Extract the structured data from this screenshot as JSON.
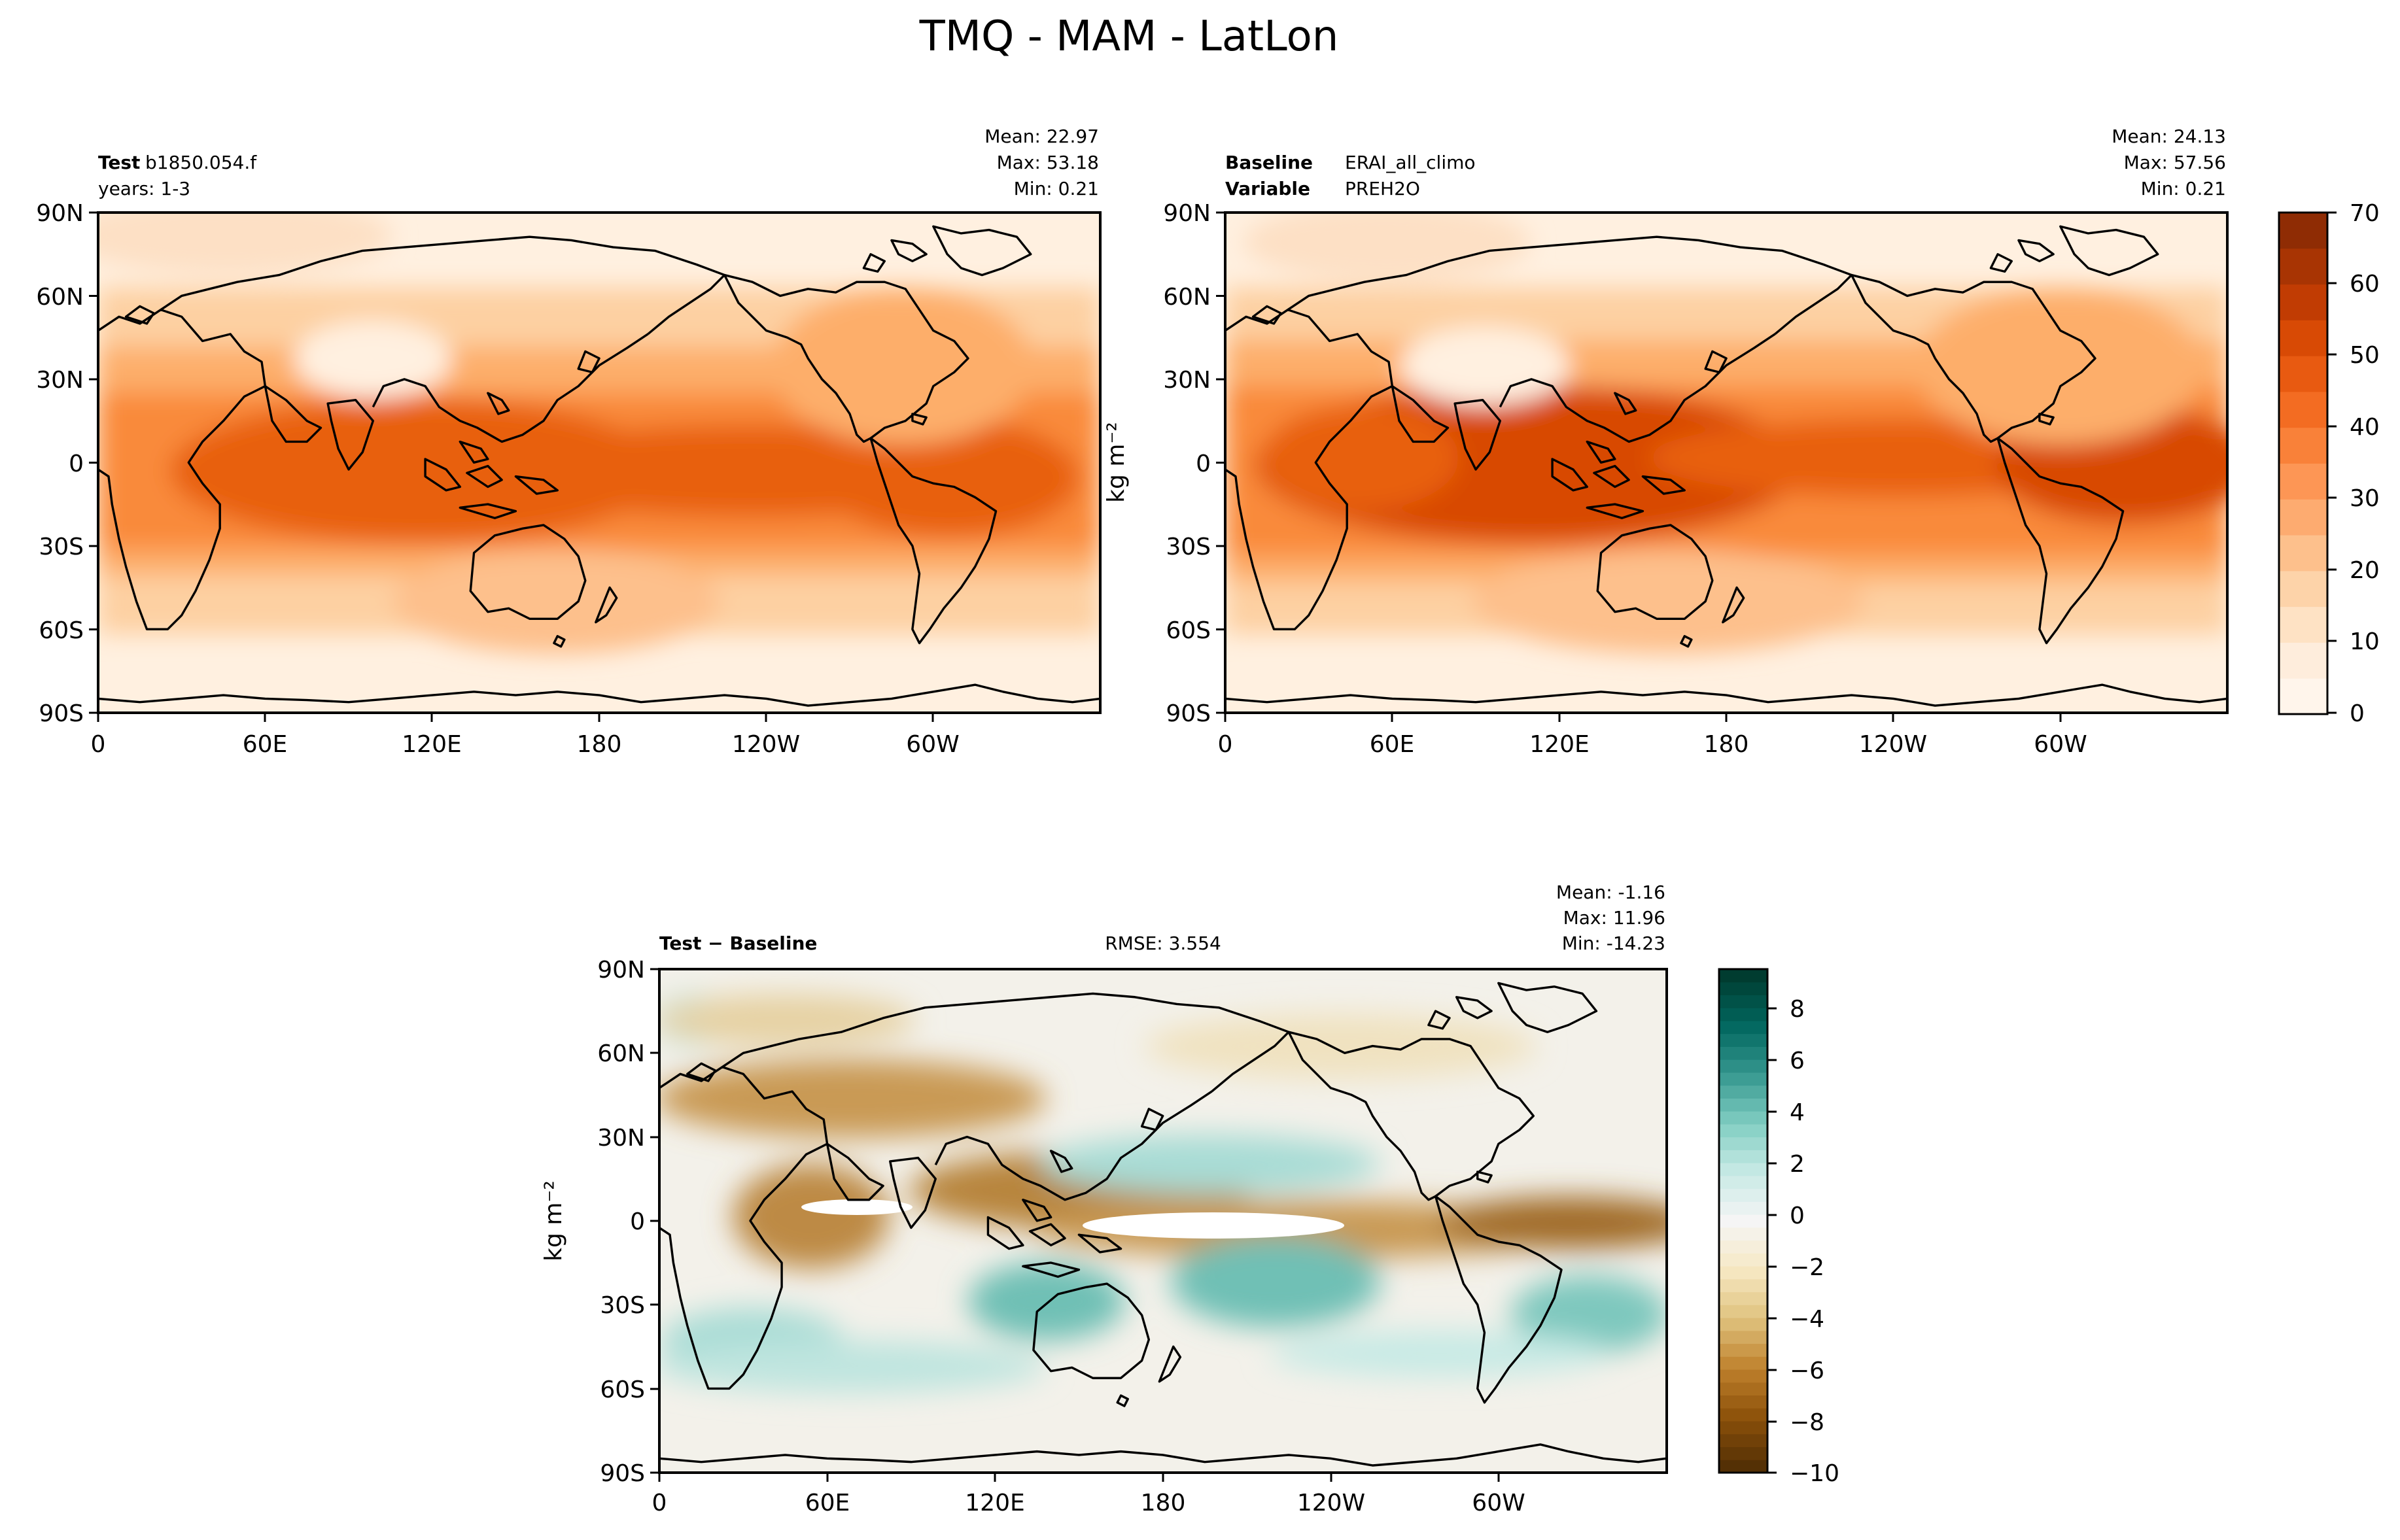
{
  "figure_title": "TMQ - MAM - LatLon",
  "panels": {
    "test": {
      "label_bold": "Test",
      "label_value": "b1850.054.f",
      "years": "years: 1-3",
      "stats": {
        "mean": "Mean: 22.97",
        "max": "Max: 53.18",
        "min": "Min:  0.21"
      }
    },
    "baseline": {
      "label_bold": "Baseline",
      "label_value": "ERAI_all_climo",
      "variable_bold": "Variable",
      "variable_value": "PREH2O",
      "stats": {
        "mean": "Mean: 24.13",
        "max": "Max: 57.56",
        "min": "Min:  0.21"
      }
    },
    "diff": {
      "label": "Test − Baseline",
      "rmse": "RMSE: 3.554",
      "stats": {
        "mean": "Mean: -1.16",
        "max": "Max: 11.96",
        "min": "Min: -14.23"
      }
    }
  },
  "units_label": "kg m⁻²",
  "colors": {
    "oranges": [
      "#fff5eb",
      "#feeddc",
      "#fee2c4",
      "#fdd3a9",
      "#fdc08c",
      "#fdab70",
      "#fd9655",
      "#f98139",
      "#f36c22",
      "#e85a11",
      "#d84a05",
      "#c13c03",
      "#a83403",
      "#8f2c04"
    ],
    "brbg": [
      "#543005",
      "#8c510a",
      "#bf812d",
      "#dfc27d",
      "#f6e8c3",
      "#f5f5f5",
      "#c7eae5",
      "#80cdc1",
      "#35978f",
      "#01665e",
      "#003c30"
    ],
    "coast": "#000000"
  },
  "chart_data": [
    {
      "type": "heatmap",
      "name": "test",
      "xticks": [
        "0",
        "60E",
        "120E",
        "180",
        "120W",
        "60W"
      ],
      "yticks": [
        "90N",
        "60N",
        "30N",
        "0",
        "30S",
        "60S",
        "90S"
      ],
      "xlim": [
        0,
        360
      ],
      "ylim": [
        -90,
        90
      ]
    },
    {
      "type": "heatmap",
      "name": "baseline",
      "xticks": [
        "0",
        "60E",
        "120E",
        "180",
        "120W",
        "60W"
      ],
      "yticks": [
        "90N",
        "60N",
        "30N",
        "0",
        "30S",
        "60S",
        "90S"
      ],
      "xlim": [
        0,
        360
      ],
      "ylim": [
        -90,
        90
      ],
      "colorbar": {
        "ticks": [
          "0",
          "10",
          "20",
          "30",
          "40",
          "50",
          "60",
          "70"
        ],
        "range": [
          0,
          70
        ],
        "levels": 14
      }
    },
    {
      "type": "heatmap",
      "name": "diff",
      "xticks": [
        "0",
        "60E",
        "120E",
        "180",
        "120W",
        "60W"
      ],
      "yticks": [
        "90N",
        "60N",
        "30N",
        "0",
        "30S",
        "60S",
        "90S"
      ],
      "xlim": [
        0,
        360
      ],
      "ylim": [
        -90,
        90
      ],
      "colorbar": {
        "ticks": [
          "8",
          "6",
          "4",
          "2",
          "0",
          "−2",
          "−4",
          "−6",
          "−8",
          "−10"
        ],
        "range": [
          -10,
          9.5
        ]
      }
    }
  ]
}
